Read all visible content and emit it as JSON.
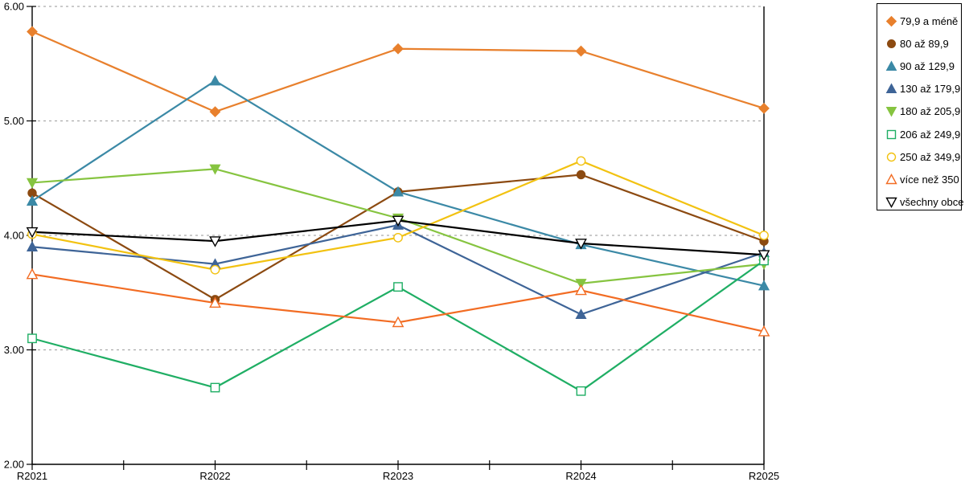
{
  "chart_data": {
    "type": "line",
    "title": "",
    "xlabel": "",
    "ylabel": "",
    "categories": [
      "R2021",
      "R2022",
      "R2023",
      "R2024",
      "R2025"
    ],
    "series": [
      {
        "name": "79,9 a méně",
        "marker": "diamond-filled",
        "color": "#E8802D",
        "values": [
          5.78,
          5.08,
          5.63,
          5.61,
          5.11
        ]
      },
      {
        "name": "80 až 89,9",
        "marker": "circle-filled",
        "color": "#8C4A11",
        "values": [
          4.37,
          3.44,
          4.38,
          4.53,
          3.95
        ]
      },
      {
        "name": "90 až 129,9",
        "marker": "triangle-up-filled",
        "color": "#3B89A6",
        "values": [
          4.3,
          5.35,
          4.38,
          3.92,
          3.56
        ]
      },
      {
        "name": "130 až 179,9",
        "marker": "triangle-up-filled",
        "color": "#3E6497",
        "values": [
          3.9,
          3.75,
          4.09,
          3.31,
          3.85
        ]
      },
      {
        "name": "180 až 205,9",
        "marker": "triangle-down-filled",
        "color": "#86C440",
        "values": [
          4.46,
          4.58,
          4.15,
          3.58,
          3.75
        ]
      },
      {
        "name": "206 až 249,9",
        "marker": "square-open",
        "color": "#1FAE64",
        "values": [
          3.1,
          2.67,
          3.55,
          2.64,
          3.78
        ]
      },
      {
        "name": "250 až 349,9",
        "marker": "circle-open",
        "color": "#F2C211",
        "values": [
          4.01,
          3.7,
          3.98,
          4.65,
          4.0
        ]
      },
      {
        "name": "více než 350",
        "marker": "triangle-up-open",
        "color": "#F26C23",
        "values": [
          3.66,
          3.41,
          3.24,
          3.52,
          3.16
        ]
      },
      {
        "name": "všechny obce",
        "marker": "triangle-down-open",
        "color": "#000000",
        "values": [
          4.03,
          3.95,
          4.13,
          3.93,
          3.83
        ]
      }
    ],
    "ylim": [
      2,
      6
    ],
    "ytick_values": [
      6,
      5,
      4,
      3,
      2
    ],
    "ytick_labels": [
      "6.00",
      "5.00",
      "4.00",
      "3.00",
      "2.00"
    ],
    "grid": "horizontal-dashed",
    "gridline_color": "#ABABAB",
    "axis_color": "#000000",
    "legend_position": "top-right"
  }
}
